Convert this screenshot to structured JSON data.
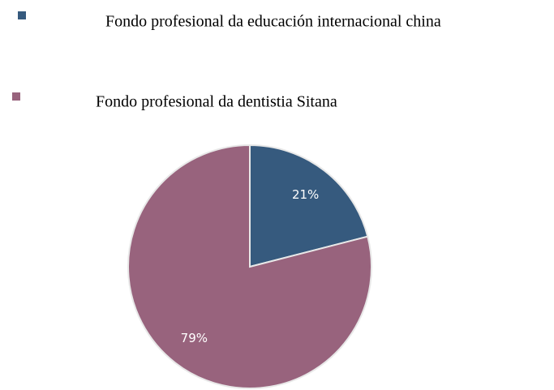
{
  "chart_data": {
    "type": "pie",
    "categories": [
      "Fondo profesional da educación internacional china",
      "Fondo profesional da dentistia Sitana"
    ],
    "values": [
      21,
      79
    ],
    "value_labels": [
      "21%",
      "79%"
    ],
    "colors": [
      "#365a7e",
      "#98637d"
    ]
  }
}
